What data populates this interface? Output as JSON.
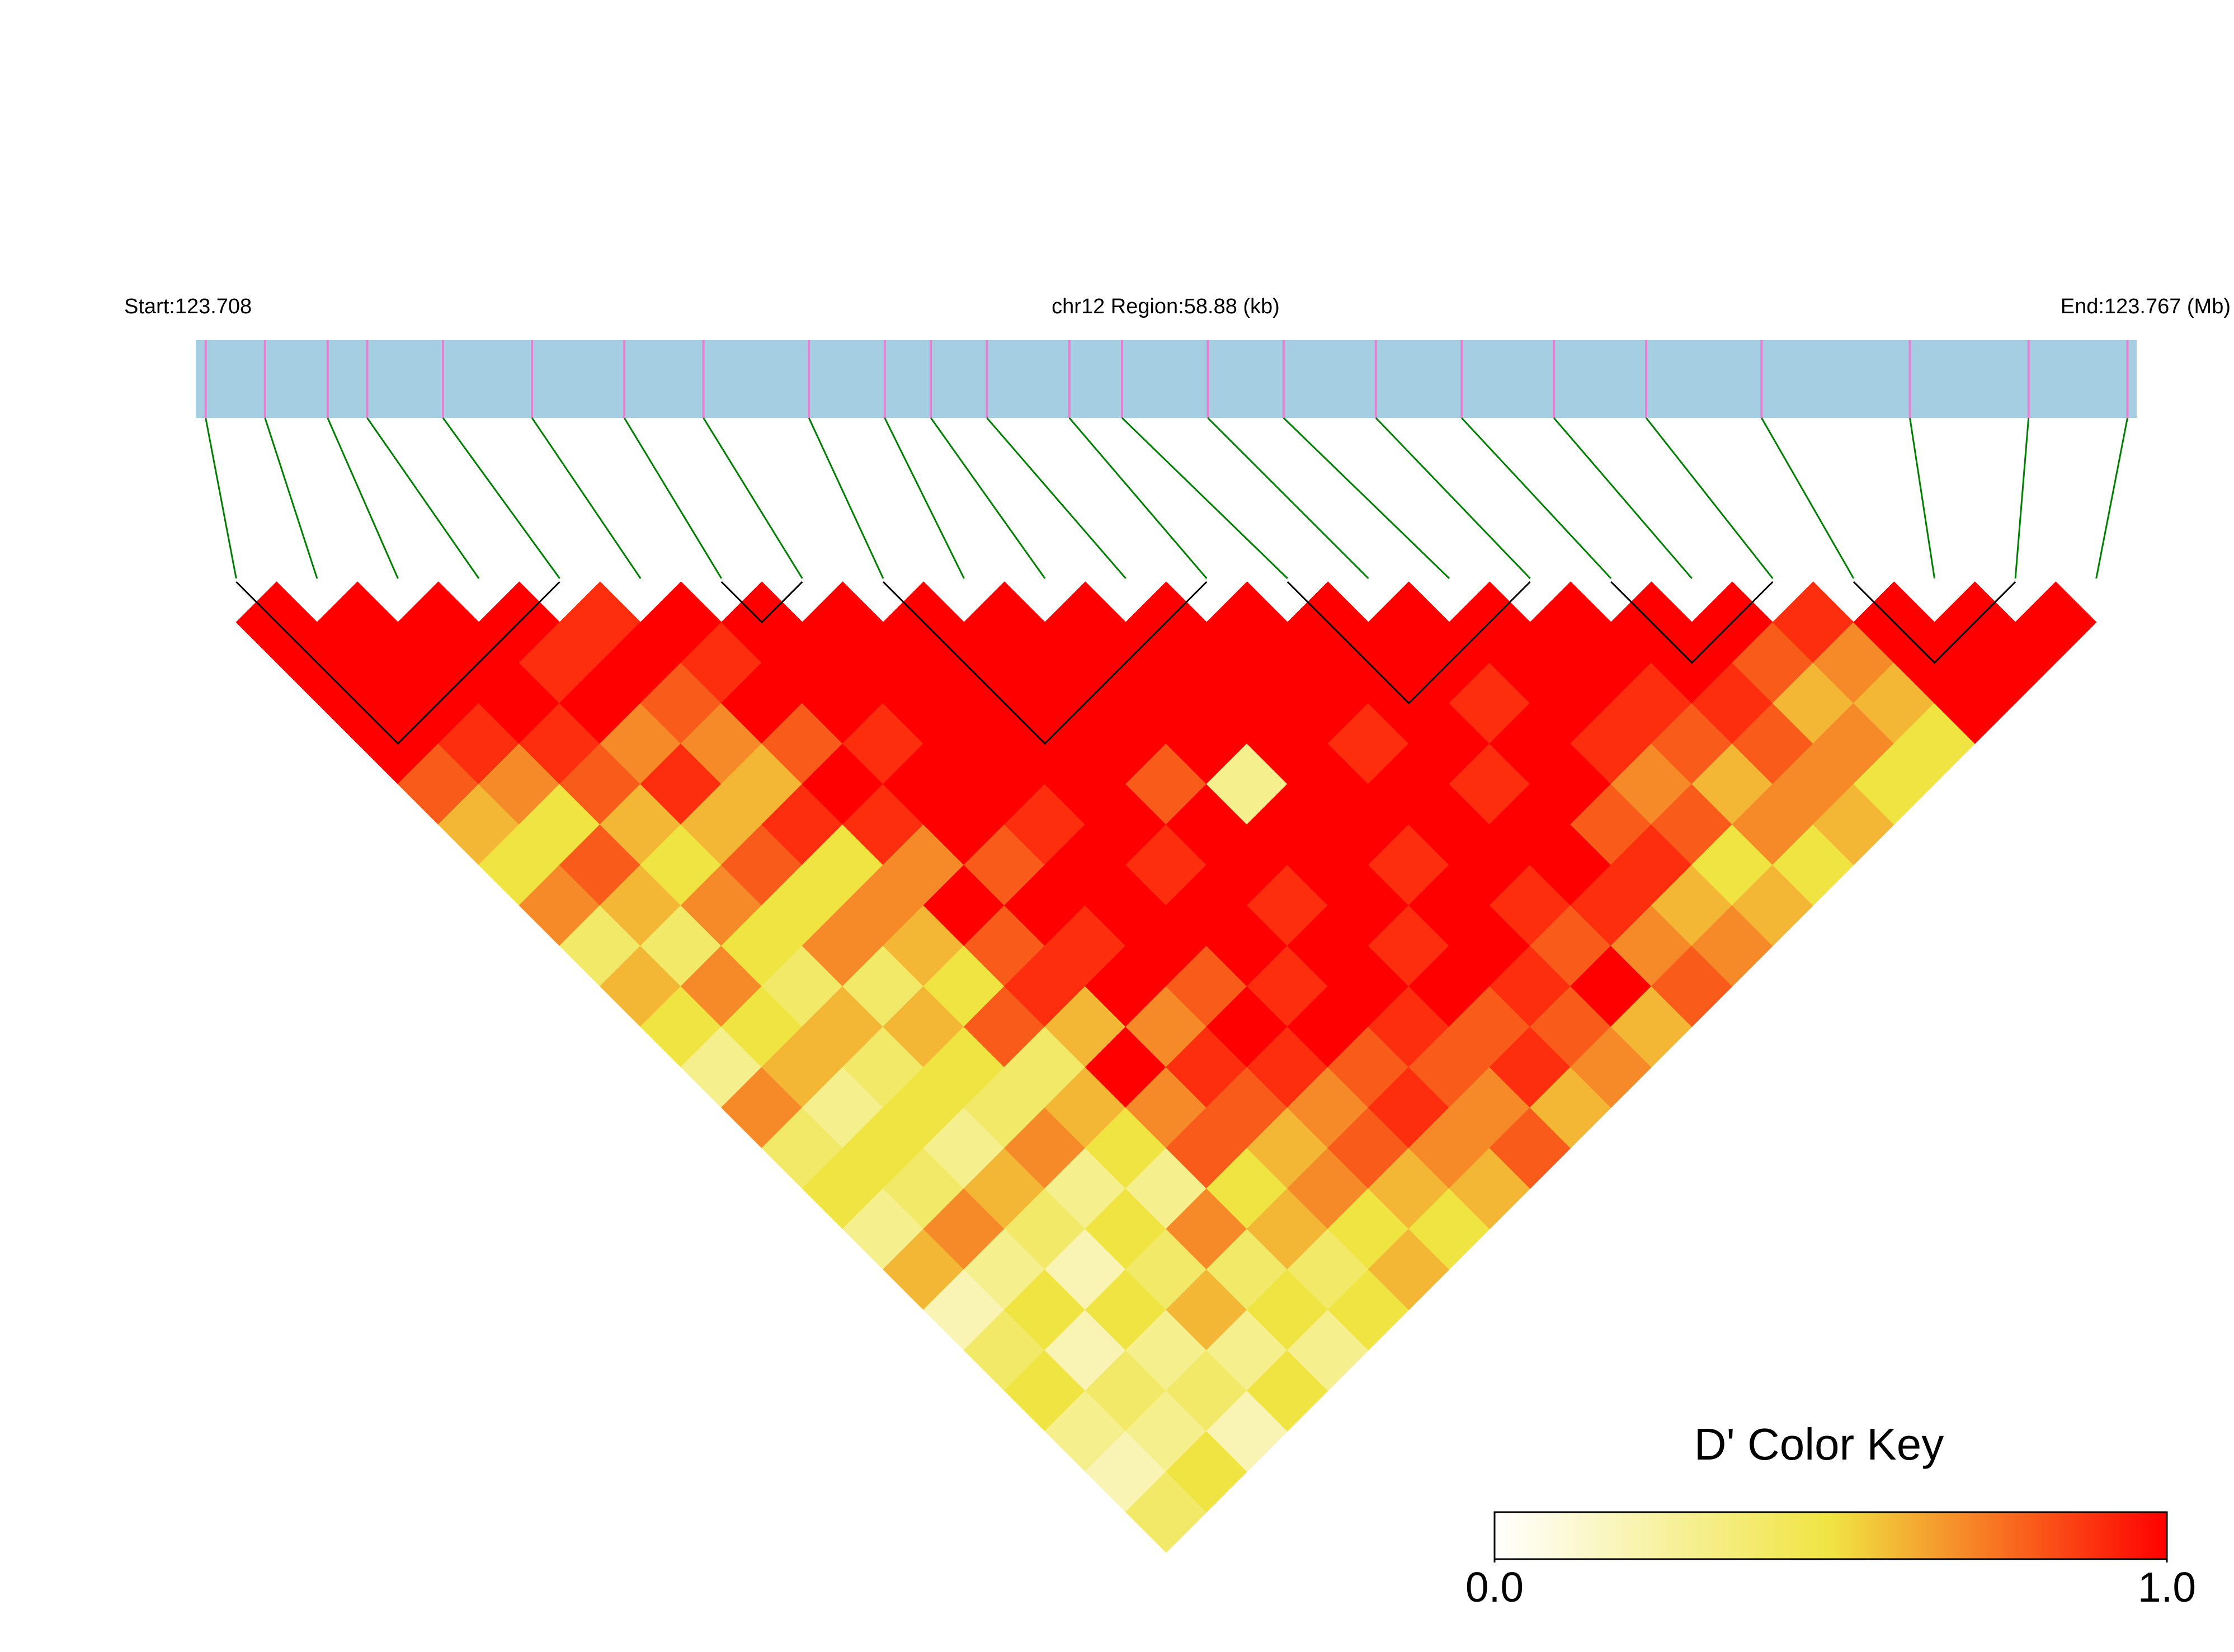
{
  "chart_data": {
    "type": "ld-heatmap",
    "start_label": "Start:123.708",
    "region_label": "chr12 Region:58.88 (kb)",
    "end_label": "End:123.767 (Mb)",
    "xlim": [
      0,
      58.88
    ],
    "positions": [
      0.3,
      2.1,
      4.0,
      5.2,
      7.5,
      10.2,
      13.0,
      15.4,
      18.6,
      20.9,
      22.3,
      24.0,
      26.5,
      28.1,
      30.7,
      33.0,
      35.8,
      38.4,
      41.2,
      44.0,
      47.5,
      52.0,
      55.6,
      58.6
    ],
    "dprime": [
      [
        1,
        1,
        1,
        1,
        0.8,
        0.6,
        0.5,
        0.7,
        0.4,
        0.6,
        0.5,
        0.3,
        0.7,
        0.4,
        0.5,
        0.3,
        0.6,
        0.2,
        0.4,
        0.5,
        0.3,
        0.2,
        0.4
      ],
      [
        1,
        1,
        1,
        0.9,
        0.7,
        0.5,
        0.8,
        0.6,
        0.4,
        0.7,
        0.5,
        0.6,
        0.3,
        0.5,
        0.4,
        0.7,
        0.3,
        0.5,
        0.2,
        0.4,
        0.3,
        0.5
      ],
      [
        1,
        1,
        1,
        0.9,
        0.8,
        0.6,
        0.5,
        0.7,
        0.5,
        0.4,
        0.6,
        0.4,
        0.5,
        0.3,
        0.6,
        0.4,
        0.2,
        0.5,
        0.3,
        0.4,
        0.2
      ],
      [
        1,
        0.9,
        1,
        0.7,
        0.9,
        0.6,
        0.8,
        0.5,
        0.7,
        0.4,
        0.6,
        0.5,
        0.4,
        0.7,
        0.3,
        0.5,
        0.4,
        0.6,
        0.3,
        0.5
      ],
      [
        0.9,
        1,
        0.8,
        0.7,
        0.6,
        0.9,
        0.5,
        0.7,
        0.6,
        0.5,
        0.8,
        0.4,
        0.6,
        0.5,
        0.3,
        0.7,
        0.4,
        0.5,
        0.3
      ],
      [
        1,
        0.9,
        1,
        0.8,
        1,
        0.9,
        0.7,
        1,
        0.8,
        0.9,
        0.6,
        1,
        0.7,
        0.8,
        0.5,
        0.6,
        0.4,
        0.5
      ],
      [
        1,
        1,
        1,
        0.9,
        1,
        1,
        0.8,
        1,
        0.9,
        1,
        0.7,
        0.9,
        0.8,
        0.6,
        0.7,
        0.5,
        0.6
      ],
      [
        1,
        1,
        1,
        1,
        1,
        0.9,
        1,
        1,
        1,
        0.8,
        1,
        0.9,
        0.7,
        0.8,
        0.6,
        0.5
      ],
      [
        1,
        1,
        1,
        1,
        1,
        1,
        0.9,
        1,
        1,
        0.9,
        1,
        0.8,
        0.9,
        0.7,
        0.6
      ],
      [
        1,
        1,
        1,
        1,
        0.8,
        1,
        1,
        0.9,
        1,
        1,
        0.9,
        0.8,
        0.7,
        0.8
      ],
      [
        1,
        1,
        1,
        1,
        0.3,
        1,
        1,
        1,
        0.9,
        1,
        0.8,
        0.9,
        0.6
      ],
      [
        1,
        1,
        1,
        1,
        1,
        1,
        0.9,
        1,
        1,
        0.9,
        0.8,
        0.7
      ],
      [
        1,
        1,
        1,
        0.9,
        1,
        1,
        1,
        0.9,
        0.8,
        1,
        0.6
      ],
      [
        1,
        1,
        1,
        1,
        0.9,
        1,
        1,
        0.9,
        0.7,
        0.8
      ],
      [
        1,
        1,
        0.9,
        1,
        1,
        0.8,
        0.9,
        0.6,
        0.7
      ],
      [
        1,
        1,
        1,
        0.9,
        0.7,
        0.8,
        0.5,
        0.6
      ],
      [
        1,
        1,
        0.9,
        0.8,
        0.6,
        0.7,
        0.5
      ],
      [
        1,
        1,
        0.9,
        0.8,
        0.7,
        0.6
      ],
      [
        1,
        0.8,
        0.6,
        0.7,
        0.5
      ],
      [
        0.9,
        0.7,
        0.6,
        0.5
      ],
      [
        1,
        1,
        1
      ],
      [
        1,
        1
      ],
      [
        1
      ]
    ],
    "blocks": [
      [
        0,
        4
      ],
      [
        6,
        7
      ],
      [
        8,
        12
      ],
      [
        13,
        16
      ],
      [
        17,
        19
      ],
      [
        20,
        22
      ]
    ],
    "colors": [
      "#ffffff",
      "#f0e442",
      "#ff0000"
    ],
    "bar_color": "#a6cee3",
    "snp_color": "#e87fd0",
    "link_color": "#008000",
    "key_title": "D' Color Key",
    "clim": [
      0,
      1
    ],
    "cticks": [
      {
        "value": 0,
        "label": "0.0"
      },
      {
        "value": 1,
        "label": "1.0"
      }
    ]
  }
}
